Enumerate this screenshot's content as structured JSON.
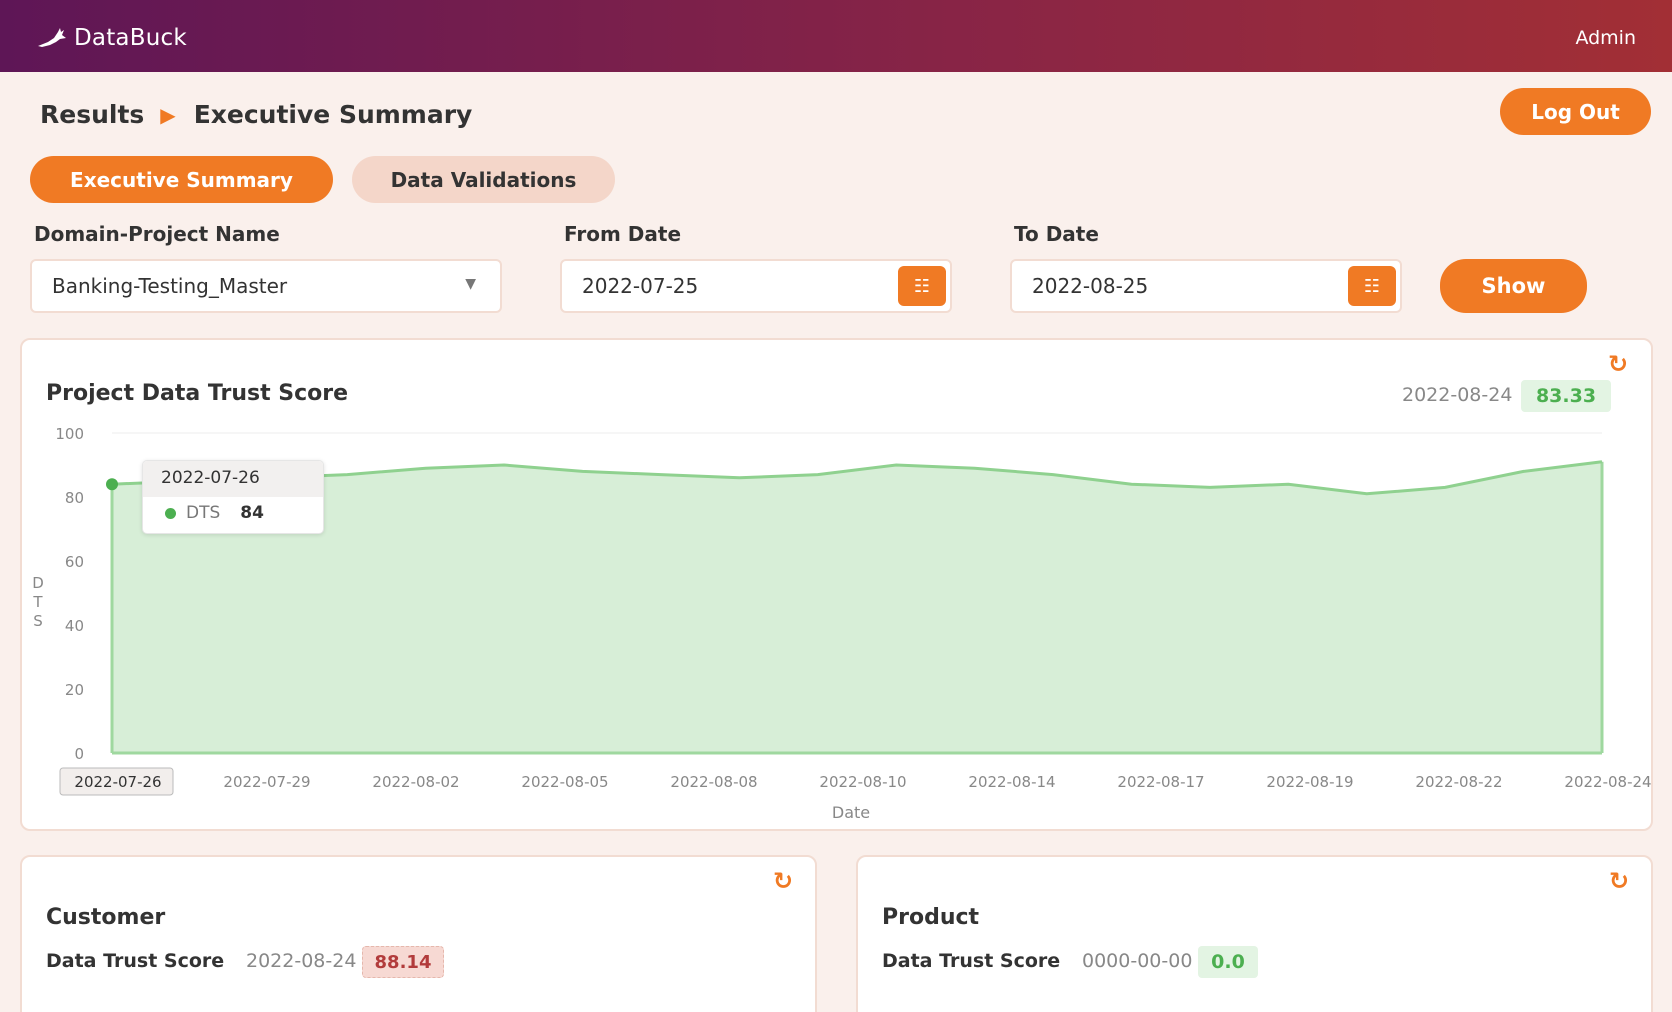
{
  "app": {
    "name": "DataBuck",
    "user": "Admin"
  },
  "breadcrumb": {
    "parent": "Results",
    "current": "Executive Summary"
  },
  "header": {
    "logout_label": "Log Out"
  },
  "tabs": [
    {
      "label": "Executive Summary",
      "active": true
    },
    {
      "label": "Data Validations",
      "active": false
    }
  ],
  "filters": {
    "project_label": "Domain-Project Name",
    "project_value": "Banking-Testing_Master",
    "from_label": "From Date",
    "from_value": "2022-07-25",
    "to_label": "To Date",
    "to_value": "2022-08-25",
    "show_label": "Show"
  },
  "main_card": {
    "title": "Project Data Trust Score",
    "score_date": "2022-08-24",
    "score": "83.33"
  },
  "tooltip": {
    "date": "2022-07-26",
    "series": "DTS",
    "value": "84"
  },
  "chart_data": {
    "type": "area",
    "xlabel": "Date",
    "ylabel": "DTS",
    "ylim": [
      0,
      100
    ],
    "yticks": [
      "0",
      "20",
      "40",
      "60",
      "80",
      "100"
    ],
    "xticks": [
      "2022-07-26",
      "2022-07-29",
      "2022-08-02",
      "2022-08-05",
      "2022-08-08",
      "2022-08-10",
      "2022-08-14",
      "2022-08-17",
      "2022-08-19",
      "2022-08-22",
      "2022-08-24"
    ],
    "series": [
      {
        "name": "DTS",
        "color": "#8fd18f",
        "values": [
          84,
          85,
          86,
          87,
          89,
          90,
          88,
          87,
          86,
          87,
          90,
          89,
          87,
          84,
          83,
          84,
          81,
          83,
          88,
          91
        ]
      }
    ],
    "grid": false,
    "highlight_index": 0
  },
  "cards": [
    {
      "title": "Customer",
      "dts_label": "Data Trust Score",
      "date": "2022-08-24",
      "score": "88.14",
      "status": "red"
    },
    {
      "title": "Product",
      "dts_label": "Data Trust Score",
      "date": "0000-00-00",
      "score": "0.0",
      "status": "green"
    }
  ]
}
